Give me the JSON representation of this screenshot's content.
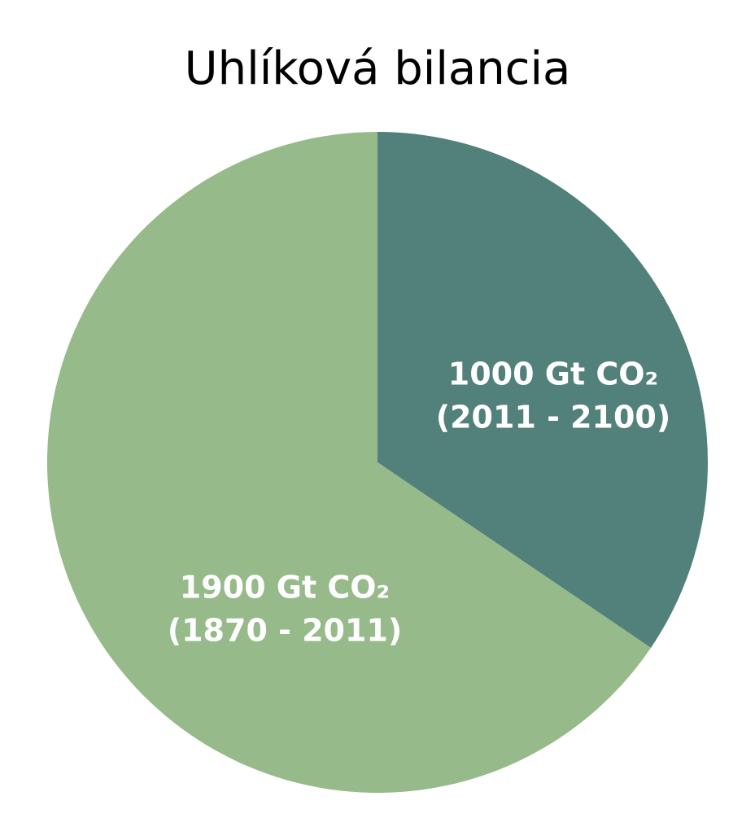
{
  "chart_data": {
    "type": "pie",
    "title": "Uhlíková bilancia",
    "categories": [
      "(2011 - 2100)",
      "(1870 - 2011)"
    ],
    "values": [
      1000,
      1900
    ],
    "value_labels": [
      "1000 Gt CO₂",
      "1900 Gt CO₂"
    ],
    "colors": [
      "#52807a",
      "#97ba8a"
    ]
  }
}
